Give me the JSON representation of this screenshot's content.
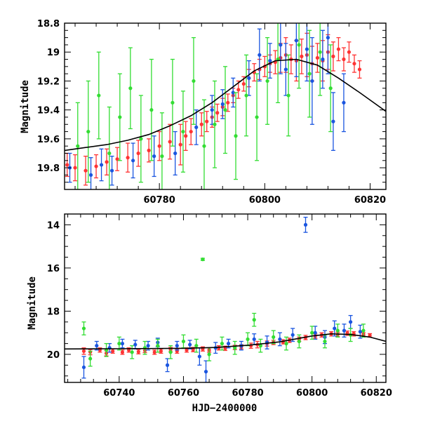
{
  "chart_data": [
    {
      "type": "scatter",
      "title": "",
      "xlabel": "",
      "ylabel": "Magnitude",
      "xlim": [
        60762,
        60823
      ],
      "ylim": [
        19.95,
        18.8
      ],
      "y_inverted": true,
      "xticks": [
        60780,
        60800,
        60820
      ],
      "yticks": [
        18.8,
        19,
        19.2,
        19.4,
        19.6,
        19.8
      ],
      "ytick_labels": [
        "18.8",
        "19",
        "19.2",
        "19.4",
        "19.6",
        "19.8"
      ],
      "model_curve": {
        "color": "#000000",
        "x": [
          60762,
          60766,
          60770,
          60774,
          60778,
          60782,
          60786,
          60790,
          60794,
          60798,
          60802,
          60806,
          60810,
          60814,
          60818,
          60823
        ],
        "y": [
          19.68,
          19.66,
          19.64,
          19.61,
          19.57,
          19.51,
          19.44,
          19.35,
          19.24,
          19.13,
          19.06,
          19.05,
          19.09,
          19.18,
          19.28,
          19.41
        ]
      },
      "series": [
        {
          "color": "#ff3333",
          "x": [
            60762.5,
            60764,
            60766,
            60768,
            60770,
            60772,
            60774,
            60776,
            60778,
            60780,
            60782,
            60784,
            60785,
            60786,
            60788,
            60789,
            60790,
            60791,
            60792,
            60793,
            60794,
            60795,
            60796,
            60797,
            60798,
            60799,
            60800,
            60801,
            60802,
            60803,
            60804,
            60805,
            60806,
            60807,
            60808,
            60809,
            60810,
            60811,
            60812,
            60813,
            60814,
            60815,
            60816,
            60817,
            60818
          ],
          "y": [
            19.78,
            19.8,
            19.82,
            19.79,
            19.76,
            19.74,
            19.73,
            19.7,
            19.68,
            19.65,
            19.62,
            19.64,
            19.58,
            19.55,
            19.5,
            19.48,
            19.45,
            19.42,
            19.38,
            19.35,
            19.3,
            19.26,
            19.22,
            19.18,
            19.14,
            19.12,
            19.1,
            19.08,
            19.07,
            19.04,
            19.02,
            19.05,
            19.06,
            19.03,
            19.02,
            19.08,
            19.04,
            19.06,
            19.0,
            19.03,
            18.98,
            19.05,
            19.0,
            19.08,
            19.12
          ],
          "err": [
            0.08,
            0.09,
            0.1,
            0.08,
            0.09,
            0.08,
            0.1,
            0.09,
            0.08,
            0.1,
            0.12,
            0.14,
            0.1,
            0.09,
            0.08,
            0.07,
            0.07,
            0.06,
            0.06,
            0.06,
            0.05,
            0.06,
            0.05,
            0.06,
            0.06,
            0.07,
            0.07,
            0.06,
            0.08,
            0.1,
            0.12,
            0.1,
            0.14,
            0.12,
            0.15,
            0.12,
            0.1,
            0.14,
            0.12,
            0.1,
            0.08,
            0.08,
            0.07,
            0.06,
            0.06
          ]
        },
        {
          "color": "#1a55e0",
          "x": [
            60763,
            60767,
            60769,
            60771,
            60775,
            60779,
            60783,
            60787,
            60790,
            60792,
            60794,
            60797,
            60799,
            60801,
            60803,
            60804,
            60806,
            60808,
            60809,
            60811,
            60812,
            60813,
            60815
          ],
          "y": [
            19.8,
            19.85,
            19.78,
            19.82,
            19.75,
            19.72,
            19.7,
            19.52,
            19.4,
            19.36,
            19.28,
            19.18,
            19.02,
            19.06,
            18.95,
            19.12,
            18.92,
            18.98,
            19.2,
            19.05,
            18.9,
            19.48,
            19.35
          ],
          "err": [
            0.1,
            0.12,
            0.11,
            0.1,
            0.12,
            0.14,
            0.15,
            0.12,
            0.1,
            0.1,
            0.1,
            0.12,
            0.18,
            0.12,
            0.2,
            0.18,
            0.25,
            0.22,
            0.3,
            0.2,
            0.25,
            0.2,
            0.2
          ]
        },
        {
          "color": "#33dd33",
          "x": [
            60764.5,
            60766.5,
            60768.5,
            60770.5,
            60772.5,
            60774.5,
            60776.5,
            60778.5,
            60780.5,
            60782.5,
            60784.5,
            60786.5,
            60788.5,
            60790.5,
            60792.5,
            60794.5,
            60796.5,
            60798.5,
            60800.5,
            60802.5,
            60804.5,
            60806.5,
            60808.5,
            60810.5,
            60812.5
          ],
          "y": [
            19.65,
            19.55,
            19.3,
            19.7,
            19.45,
            19.25,
            19.6,
            19.4,
            19.72,
            19.35,
            19.55,
            19.2,
            19.65,
            19.5,
            19.4,
            19.58,
            19.3,
            19.45,
            19.2,
            19.05,
            19.3,
            18.95,
            19.15,
            19.0,
            19.25
          ],
          "err": [
            0.3,
            0.35,
            0.3,
            0.32,
            0.3,
            0.28,
            0.3,
            0.35,
            0.3,
            0.3,
            0.28,
            0.3,
            0.32,
            0.3,
            0.3,
            0.3,
            0.28,
            0.3,
            0.3,
            0.3,
            0.28,
            0.3,
            0.3,
            0.3,
            0.3
          ]
        }
      ]
    },
    {
      "type": "scatter",
      "title": "",
      "xlabel": "HJD−2400000",
      "ylabel": "Magnitude",
      "xlim": [
        60723,
        60823
      ],
      "ylim": [
        21.3,
        13.5
      ],
      "y_inverted": true,
      "xticks": [
        60740,
        60760,
        60780,
        60800,
        60820
      ],
      "yticks": [
        14,
        16,
        18,
        20
      ],
      "ytick_labels": [
        "14",
        "16",
        "18",
        "20"
      ],
      "model_curve": {
        "color": "#000000",
        "x": [
          60723,
          60740,
          60760,
          60770,
          60780,
          60790,
          60800,
          60806,
          60812,
          60818,
          60823
        ],
        "y": [
          19.75,
          19.74,
          19.72,
          19.68,
          19.58,
          19.42,
          19.15,
          19.05,
          19.08,
          19.2,
          19.4
        ]
      },
      "series": [
        {
          "color": "#ff3333",
          "x": [
            60729,
            60731,
            60734,
            60736,
            60738,
            60741,
            60743,
            60746,
            60748,
            60751,
            60753,
            60756,
            60758,
            60761,
            60763,
            60766,
            60768,
            60771,
            60773,
            60776,
            60778,
            60781,
            60783,
            60786,
            60788,
            60791,
            60793,
            60796,
            60798,
            60801,
            60803,
            60806,
            60808,
            60811,
            60813,
            60816,
            60818
          ],
          "y": [
            19.85,
            19.9,
            19.8,
            19.95,
            19.85,
            19.9,
            19.8,
            19.88,
            19.82,
            19.9,
            19.85,
            19.78,
            19.85,
            19.8,
            19.78,
            19.75,
            19.8,
            19.7,
            19.72,
            19.68,
            19.65,
            19.6,
            19.55,
            19.5,
            19.45,
            19.42,
            19.35,
            19.3,
            19.22,
            19.15,
            19.1,
            19.05,
            19.08,
            19.02,
            19.05,
            19.08,
            19.12
          ],
          "err": [
            0.15,
            0.12,
            0.1,
            0.12,
            0.1,
            0.1,
            0.1,
            0.1,
            0.1,
            0.1,
            0.1,
            0.1,
            0.1,
            0.1,
            0.1,
            0.1,
            0.1,
            0.1,
            0.1,
            0.1,
            0.1,
            0.12,
            0.15,
            0.12,
            0.1,
            0.1,
            0.1,
            0.1,
            0.1,
            0.1,
            0.1,
            0.1,
            0.1,
            0.1,
            0.1,
            0.08,
            0.08
          ]
        },
        {
          "color": "#1a55e0",
          "x": [
            60729,
            60733,
            60737,
            60741,
            60745,
            60749,
            60752,
            60755,
            60758,
            60762,
            60765,
            60767,
            60770,
            60774,
            60778,
            60782,
            60786,
            60790,
            60794,
            60798,
            60801,
            60804,
            60807,
            60810,
            60812,
            60815
          ],
          "y": [
            20.6,
            19.6,
            19.7,
            19.5,
            19.55,
            19.6,
            19.45,
            20.5,
            19.6,
            19.55,
            20.1,
            20.8,
            19.7,
            19.5,
            19.6,
            19.3,
            19.45,
            19.3,
            19.1,
            14.0,
            19.0,
            19.2,
            18.8,
            18.9,
            18.5,
            18.95
          ],
          "err": [
            0.5,
            0.2,
            0.2,
            0.2,
            0.2,
            0.2,
            0.2,
            0.3,
            0.2,
            0.2,
            0.4,
            0.5,
            0.25,
            0.2,
            0.2,
            0.25,
            0.3,
            0.3,
            0.3,
            0.35,
            0.3,
            0.3,
            0.35,
            0.3,
            0.3,
            0.3
          ]
        },
        {
          "color": "#33dd33",
          "x": [
            60729,
            60731,
            60736,
            60740,
            60744,
            60748,
            60752,
            60756,
            60760,
            60764,
            60766,
            60768,
            60772,
            60776,
            60780,
            60782,
            60784,
            60788,
            60792,
            60796,
            60800,
            60804,
            60808,
            60812,
            60816
          ],
          "y": [
            18.8,
            20.2,
            19.8,
            19.5,
            19.9,
            19.7,
            19.6,
            19.9,
            19.4,
            19.6,
            15.6,
            20.0,
            19.5,
            19.7,
            19.3,
            18.4,
            19.6,
            19.2,
            19.5,
            19.4,
            19.0,
            19.4,
            18.9,
            19.1,
            18.9
          ],
          "err": [
            0.3,
            0.35,
            0.3,
            0.3,
            0.3,
            0.3,
            0.3,
            0.3,
            0.3,
            0.3,
            0.05,
            0.3,
            0.3,
            0.3,
            0.3,
            0.3,
            0.3,
            0.3,
            0.3,
            0.3,
            0.3,
            0.3,
            0.3,
            0.3,
            0.3
          ]
        }
      ]
    }
  ]
}
